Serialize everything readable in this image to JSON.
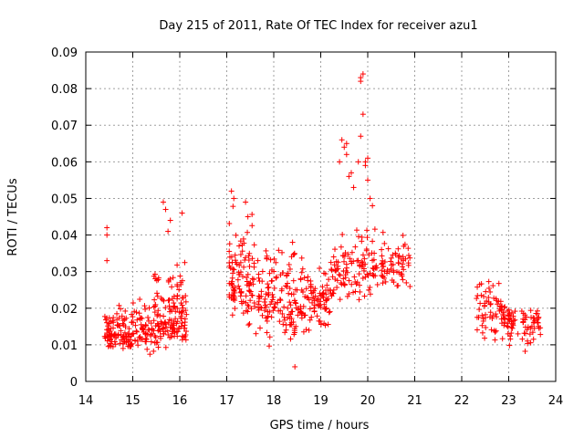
{
  "chart_data": {
    "type": "scatter",
    "title": "Day 215 of 2011, Rate Of TEC Index for receiver azu1",
    "xlabel": "GPS time / hours",
    "ylabel": "ROTI / TECUs",
    "xlim": [
      14,
      24
    ],
    "ylim": [
      0,
      0.09
    ],
    "xticks": [
      "14",
      "15",
      "16",
      "17",
      "18",
      "19",
      "20",
      "21",
      "22",
      "23",
      "24"
    ],
    "yticks": [
      "0",
      "0.01",
      "0.02",
      "0.03",
      "0.04",
      "0.05",
      "0.06",
      "0.07",
      "0.08",
      "0.09"
    ],
    "grid": true,
    "marker": "+",
    "color": "#ff0000",
    "clusters": [
      {
        "x_range": [
          14.4,
          15.4
        ],
        "y_min": 0.006,
        "y_max": 0.024,
        "y_mid": 0.013,
        "n": 160
      },
      {
        "x_range": [
          15.4,
          16.15
        ],
        "y_min": 0.006,
        "y_max": 0.037,
        "y_mid": 0.016,
        "n": 150
      },
      {
        "x_range": [
          17.05,
          17.6
        ],
        "y_min": 0.011,
        "y_max": 0.052,
        "y_mid": 0.027,
        "n": 110
      },
      {
        "x_range": [
          17.6,
          18.7
        ],
        "y_min": 0.009,
        "y_max": 0.043,
        "y_mid": 0.021,
        "n": 160
      },
      {
        "x_range": [
          18.7,
          19.2
        ],
        "y_min": 0.012,
        "y_max": 0.033,
        "y_mid": 0.022,
        "n": 70
      },
      {
        "x_range": [
          19.2,
          19.9
        ],
        "y_min": 0.019,
        "y_max": 0.044,
        "y_mid": 0.03,
        "n": 80
      },
      {
        "x_range": [
          19.9,
          20.9
        ],
        "y_min": 0.02,
        "y_max": 0.044,
        "y_mid": 0.031,
        "n": 100
      },
      {
        "x_range": [
          22.3,
          22.85
        ],
        "y_min": 0.008,
        "y_max": 0.03,
        "y_mid": 0.02,
        "n": 60
      },
      {
        "x_range": [
          22.85,
          23.7
        ],
        "y_min": 0.007,
        "y_max": 0.023,
        "y_mid": 0.016,
        "n": 90
      }
    ],
    "extra_points": [
      [
        14.45,
        0.042
      ],
      [
        14.45,
        0.04
      ],
      [
        14.45,
        0.033
      ],
      [
        15.65,
        0.049
      ],
      [
        15.7,
        0.047
      ],
      [
        15.8,
        0.044
      ],
      [
        16.05,
        0.046
      ],
      [
        15.75,
        0.041
      ],
      [
        17.1,
        0.052
      ],
      [
        17.15,
        0.05
      ],
      [
        17.4,
        0.049
      ],
      [
        17.45,
        0.045
      ],
      [
        18.45,
        0.004
      ],
      [
        18.4,
        0.038
      ],
      [
        19.45,
        0.066
      ],
      [
        19.5,
        0.064
      ],
      [
        19.55,
        0.062
      ],
      [
        19.4,
        0.06
      ],
      [
        19.6,
        0.056
      ],
      [
        19.7,
        0.053
      ],
      [
        19.85,
        0.083
      ],
      [
        19.85,
        0.082
      ],
      [
        19.9,
        0.084
      ],
      [
        19.9,
        0.073
      ],
      [
        19.85,
        0.067
      ],
      [
        19.95,
        0.06
      ],
      [
        20.0,
        0.061
      ],
      [
        19.95,
        0.059
      ],
      [
        20.0,
        0.055
      ],
      [
        20.05,
        0.05
      ],
      [
        19.8,
        0.06
      ],
      [
        19.55,
        0.065
      ],
      [
        20.1,
        0.048
      ],
      [
        19.65,
        0.057
      ]
    ]
  }
}
